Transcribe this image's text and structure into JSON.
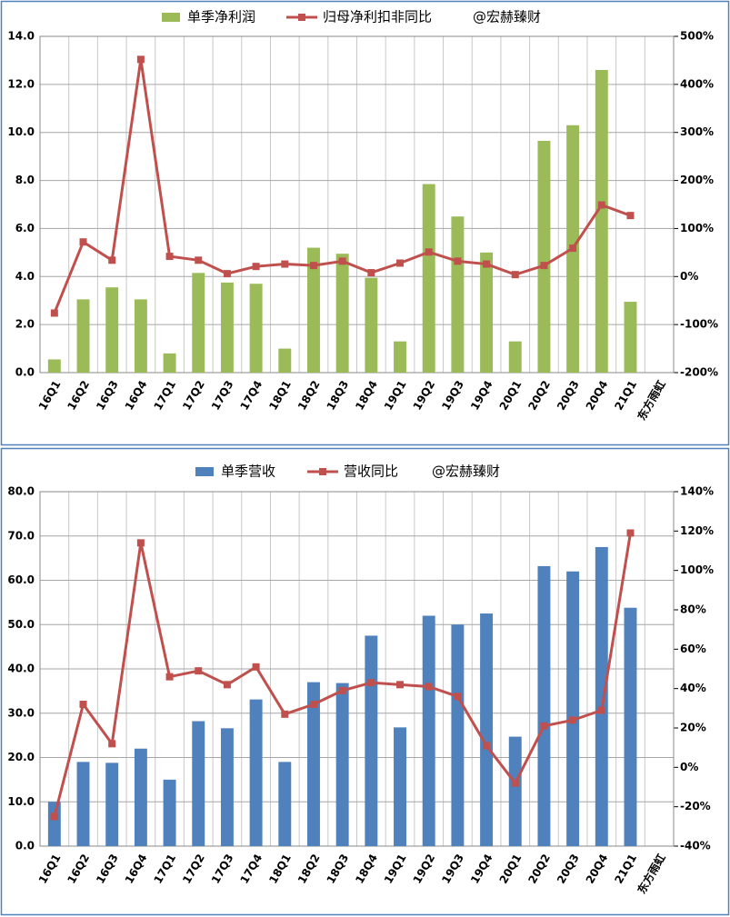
{
  "chart_data": [
    {
      "type": "combo",
      "annotation": "@宏赫臻财",
      "categories": [
        "16Q1",
        "16Q2",
        "16Q3",
        "16Q4",
        "17Q1",
        "17Q2",
        "17Q3",
        "17Q4",
        "18Q1",
        "18Q2",
        "18Q3",
        "18Q4",
        "19Q1",
        "19Q2",
        "19Q3",
        "19Q4",
        "20Q1",
        "20Q2",
        "20Q3",
        "20Q4",
        "21Q1",
        "东方雨虹"
      ],
      "series": [
        {
          "name": "单季净利润",
          "type": "bar",
          "color": "#9bbb59",
          "values": [
            0.55,
            3.05,
            3.55,
            3.05,
            0.8,
            4.15,
            3.75,
            3.7,
            1.0,
            5.2,
            4.95,
            3.95,
            1.3,
            7.85,
            6.5,
            5.0,
            1.3,
            9.65,
            10.3,
            12.6,
            2.95,
            null
          ]
        },
        {
          "name": "归母净利扣非同比",
          "type": "line",
          "axis": "y2",
          "color": "#c0504d",
          "values": [
            -76,
            72,
            34,
            452,
            42,
            34,
            6,
            21,
            26,
            23,
            32,
            8,
            28,
            51,
            32,
            26,
            4,
            23,
            59,
            149,
            127,
            null
          ]
        }
      ],
      "ylim": [
        0,
        14
      ],
      "yticks": [
        {
          "value": 0,
          "label": "0.0"
        },
        {
          "value": 2,
          "label": "2.0"
        },
        {
          "value": 4,
          "label": "4.0"
        },
        {
          "value": 6,
          "label": "6.0"
        },
        {
          "value": 8,
          "label": "8.0"
        },
        {
          "value": 10,
          "label": "10.0"
        },
        {
          "value": 12,
          "label": "12.0"
        },
        {
          "value": 14,
          "label": "14.0"
        }
      ],
      "y2lim": [
        -200,
        500
      ],
      "y2ticks": [
        {
          "value": -200,
          "label": "-200%"
        },
        {
          "value": -100,
          "label": "-100%"
        },
        {
          "value": 0,
          "label": "0%"
        },
        {
          "value": 100,
          "label": "100%"
        },
        {
          "value": 200,
          "label": "200%"
        },
        {
          "value": 300,
          "label": "300%"
        },
        {
          "value": 400,
          "label": "400%"
        },
        {
          "value": 500,
          "label": "500%"
        }
      ],
      "grid": true
    },
    {
      "type": "combo",
      "annotation": "@宏赫臻财",
      "categories": [
        "16Q1",
        "16Q2",
        "16Q3",
        "16Q4",
        "17Q1",
        "17Q2",
        "17Q3",
        "17Q4",
        "18Q1",
        "18Q2",
        "18Q3",
        "18Q4",
        "19Q1",
        "19Q2",
        "19Q3",
        "19Q4",
        "20Q1",
        "20Q2",
        "20Q3",
        "20Q4",
        "21Q1",
        "东方雨虹"
      ],
      "series": [
        {
          "name": "单季营收",
          "type": "bar",
          "color": "#4f81bd",
          "values": [
            10,
            19,
            18.8,
            22,
            15,
            28.2,
            26.6,
            33.1,
            19,
            37,
            36.8,
            47.5,
            26.8,
            52,
            50,
            52.5,
            24.7,
            63.2,
            62,
            67.5,
            53.8,
            null
          ]
        },
        {
          "name": "营收同比",
          "type": "line",
          "axis": "y2",
          "color": "#c0504d",
          "values": [
            -25,
            32,
            12,
            114,
            46,
            49,
            42,
            51,
            27,
            32,
            39,
            43,
            42,
            41,
            36,
            11,
            -8,
            21,
            24,
            29,
            119,
            null
          ]
        }
      ],
      "ylim": [
        0,
        80
      ],
      "yticks": [
        {
          "value": 0,
          "label": "0.0"
        },
        {
          "value": 10,
          "label": "10.0"
        },
        {
          "value": 20,
          "label": "20.0"
        },
        {
          "value": 30,
          "label": "30.0"
        },
        {
          "value": 40,
          "label": "40.0"
        },
        {
          "value": 50,
          "label": "50.0"
        },
        {
          "value": 60,
          "label": "60.0"
        },
        {
          "value": 70,
          "label": "70.0"
        },
        {
          "value": 80,
          "label": "80.0"
        }
      ],
      "y2lim": [
        -40,
        140
      ],
      "y2ticks": [
        {
          "value": -40,
          "label": "-40%"
        },
        {
          "value": -20,
          "label": "-20%"
        },
        {
          "value": 0,
          "label": "0%"
        },
        {
          "value": 20,
          "label": "20%"
        },
        {
          "value": 40,
          "label": "40%"
        },
        {
          "value": 60,
          "label": "60%"
        },
        {
          "value": 80,
          "label": "80%"
        },
        {
          "value": 100,
          "label": "100%"
        },
        {
          "value": 120,
          "label": "120%"
        },
        {
          "value": 140,
          "label": "140%"
        }
      ],
      "grid": true
    }
  ]
}
